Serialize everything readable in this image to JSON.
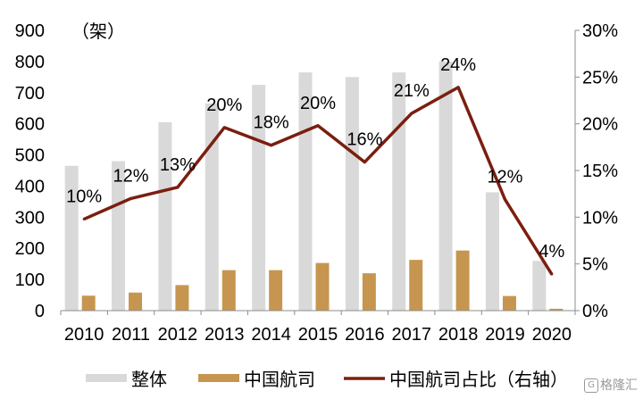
{
  "chart_data": {
    "type": "bar",
    "title": "",
    "unit_label": "（架）",
    "categories": [
      "2010",
      "2011",
      "2012",
      "2013",
      "2014",
      "2015",
      "2016",
      "2017",
      "2018",
      "2019",
      "2020"
    ],
    "series": [
      {
        "name": "整体",
        "type": "bar",
        "axis": "left",
        "color": "#d9d9d9",
        "values": [
          465,
          480,
          605,
          665,
          725,
          765,
          750,
          765,
          800,
          380,
          160
        ]
      },
      {
        "name": "中国航司",
        "type": "bar",
        "axis": "left",
        "color": "#c69650",
        "values": [
          48,
          58,
          82,
          130,
          130,
          153,
          120,
          163,
          193,
          47,
          6
        ]
      },
      {
        "name": "中国航司占比（右轴）",
        "type": "line",
        "axis": "right",
        "color": "#7b1e10",
        "values": [
          9.8,
          12.0,
          13.2,
          19.6,
          17.7,
          19.8,
          15.9,
          21.1,
          23.9,
          11.9,
          3.9
        ],
        "data_labels": [
          "10%",
          "12%",
          "13%",
          "20%",
          "18%",
          "20%",
          "16%",
          "21%",
          "24%",
          "12%",
          "4%"
        ]
      }
    ],
    "left_axis": {
      "range": [
        0,
        900
      ],
      "ticks": [
        "0",
        "100",
        "200",
        "300",
        "400",
        "500",
        "600",
        "700",
        "800",
        "900"
      ]
    },
    "right_axis": {
      "range": [
        0,
        30
      ],
      "ticks": [
        "0%",
        "5%",
        "10%",
        "15%",
        "20%",
        "25%",
        "30%"
      ]
    },
    "grid": false,
    "legend_position": "bottom"
  },
  "watermark": {
    "icon_text": "G",
    "text": "格隆汇"
  }
}
